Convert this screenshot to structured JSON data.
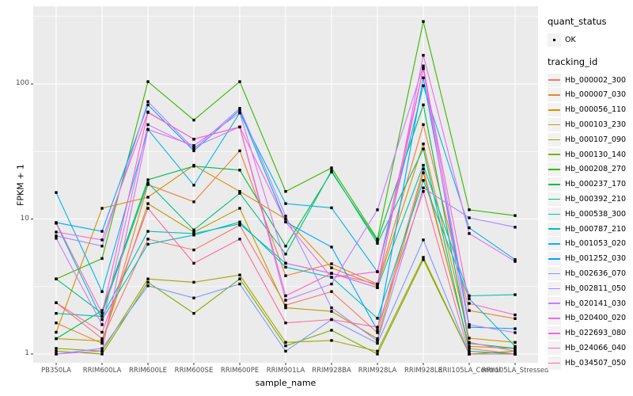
{
  "figure": {
    "xlabel": "sample_name",
    "ylabel": "FPKM + 1",
    "legend": {
      "quant_status_title": "quant_status",
      "quant_status_items": [
        "OK"
      ],
      "tracking_id_title": "tracking_id"
    },
    "colors": {
      "panel_background": "#ebebeb",
      "gridline": "#ffffff",
      "point": "#000000",
      "tick_text": "#4d4d4d",
      "legend_key_background": "#f2f2f2"
    }
  },
  "chart_data": {
    "type": "line",
    "title": "",
    "xlabel": "sample_name",
    "ylabel": "FPKM + 1",
    "y_scale": "log10",
    "y_ticks": [
      1,
      10,
      100
    ],
    "y_minor_ticks": [
      3.16,
      31.6,
      316
    ],
    "ylim": [
      0.87,
      380
    ],
    "grid": "white major+minor horizontal, white major vertical, on gray panel",
    "legend_position": "right",
    "point_shape": "small black square (quant_status = OK)",
    "categories": [
      "PB350LA",
      "RRIM600LA",
      "RRIM600LE",
      "RRIM600SE",
      "RRIM600PE",
      "RRIM901LA",
      "RRIM928BA",
      "RRIM928LA",
      "RRIM928LE",
      "RRII105LA_Control",
      "RRII105LA_Stressed"
    ],
    "series": [
      {
        "name": "Hb_000002_300",
        "color": "#F8766D",
        "quant_status": "OK",
        "values": [
          2.4,
          1.3,
          7.1,
          5.9,
          9.0,
          2.3,
          2.9,
          1.44,
          23.5,
          1.1,
          1.0
        ]
      },
      {
        "name": "Hb_000007_030",
        "color": "#EA8331",
        "quant_status": "OK",
        "values": [
          1.7,
          1.2,
          18.0,
          13.4,
          32,
          3.8,
          4.66,
          3.3,
          50,
          2.1,
          1.83
        ]
      },
      {
        "name": "Hb_000056_110",
        "color": "#D89000",
        "quant_status": "OK",
        "values": [
          1.45,
          12.0,
          14.5,
          25,
          16,
          10,
          4.35,
          3.2,
          36,
          1.31,
          1.22
        ]
      },
      {
        "name": "Hb_000103_230",
        "color": "#C09B00",
        "quant_status": "OK",
        "values": [
          1.3,
          1.25,
          13.0,
          8.0,
          12,
          2.2,
          2.07,
          1.3,
          22,
          1.14,
          1.1
        ]
      },
      {
        "name": "Hb_000107_090",
        "color": "#A3A500",
        "quant_status": "OK",
        "values": [
          1.1,
          1.05,
          3.6,
          3.4,
          3.85,
          1.22,
          1.26,
          1.05,
          5.2,
          1.0,
          1.0
        ]
      },
      {
        "name": "Hb_000130_140",
        "color": "#7CAE00",
        "quant_status": "OK",
        "values": [
          1.05,
          1.0,
          3.4,
          2.0,
          3.6,
          1.15,
          1.5,
          1.0,
          5.0,
          1.0,
          1.05
        ]
      },
      {
        "name": "Hb_000208_270",
        "color": "#39B600",
        "quant_status": "OK",
        "values": [
          3.6,
          5.1,
          104,
          54,
          104,
          16,
          23.9,
          7.1,
          290,
          11.7,
          10.6
        ]
      },
      {
        "name": "Hb_000237_170",
        "color": "#00BB4E",
        "quant_status": "OK",
        "values": [
          1.3,
          2.1,
          19.5,
          24.6,
          23,
          6.3,
          22.3,
          6.9,
          70,
          1.2,
          1.1
        ]
      },
      {
        "name": "Hb_000392_210",
        "color": "#00C087",
        "quant_status": "OK",
        "values": [
          3.6,
          2.0,
          18.5,
          8.3,
          15.5,
          5.5,
          22.8,
          6.6,
          33,
          1.05,
          1.0
        ]
      },
      {
        "name": "Hb_000538_300",
        "color": "#00C0B4",
        "quant_status": "OK",
        "values": [
          2.0,
          1.9,
          8.1,
          7.8,
          9.2,
          4.7,
          3.96,
          3.1,
          25,
          2.7,
          2.75
        ]
      },
      {
        "name": "Hb_000787_210",
        "color": "#00BFC4",
        "quant_status": "OK",
        "values": [
          9.3,
          1.8,
          6.5,
          7.6,
          9.5,
          4.4,
          3.7,
          1.84,
          19.3,
          2.57,
          1.14
        ]
      },
      {
        "name": "Hb_001053_020",
        "color": "#00B5EC",
        "quant_status": "OK",
        "values": [
          15.7,
          2.9,
          46,
          17.8,
          61,
          13,
          12.1,
          4.07,
          97,
          8.6,
          5.0
        ]
      },
      {
        "name": "Hb_001252_030",
        "color": "#00A5FF",
        "quant_status": "OK",
        "values": [
          9.4,
          8.1,
          70,
          32,
          64,
          9.5,
          6.2,
          1.5,
          111,
          1.58,
          1.54
        ]
      },
      {
        "name": "Hb_002636_070",
        "color": "#7F96FF",
        "quant_status": "OK",
        "values": [
          1.0,
          1.1,
          3.2,
          2.6,
          3.3,
          1.05,
          1.8,
          1.2,
          7.0,
          1.0,
          1.0
        ]
      },
      {
        "name": "Hb_002811_050",
        "color": "#A788FF",
        "quant_status": "OK",
        "values": [
          7.5,
          6.3,
          74,
          33,
          66,
          10.5,
          2.2,
          1.25,
          17,
          10.2,
          8.7
        ]
      },
      {
        "name": "Hb_020141_030",
        "color": "#C77CFF",
        "quant_status": "OK",
        "values": [
          7.2,
          1.65,
          50,
          34,
          48,
          2.5,
          3.3,
          11.7,
          136,
          1.65,
          1.44
        ]
      },
      {
        "name": "Hb_020400_020",
        "color": "#E36EF6",
        "quant_status": "OK",
        "values": [
          1.0,
          1.05,
          46,
          35,
          61,
          4.7,
          3.96,
          3.1,
          163,
          7.8,
          4.85
        ]
      },
      {
        "name": "Hb_022693_080",
        "color": "#F564E3",
        "quant_status": "OK",
        "values": [
          8.0,
          7.0,
          62,
          39,
          48,
          9.5,
          3.7,
          4.07,
          130,
          1.22,
          1.05
        ]
      },
      {
        "name": "Hb_024066_040",
        "color": "#FF61C7",
        "quant_status": "OK",
        "values": [
          9.4,
          2.0,
          61.5,
          39,
          48,
          2.7,
          3.96,
          3.3,
          130,
          2.37,
          1.95
        ]
      },
      {
        "name": "Hb_034507_050",
        "color": "#FF68A1",
        "quant_status": "OK",
        "values": [
          2.4,
          1.45,
          12.0,
          4.7,
          7.1,
          1.7,
          1.8,
          1.58,
          16,
          1.0,
          1.0
        ]
      }
    ]
  }
}
